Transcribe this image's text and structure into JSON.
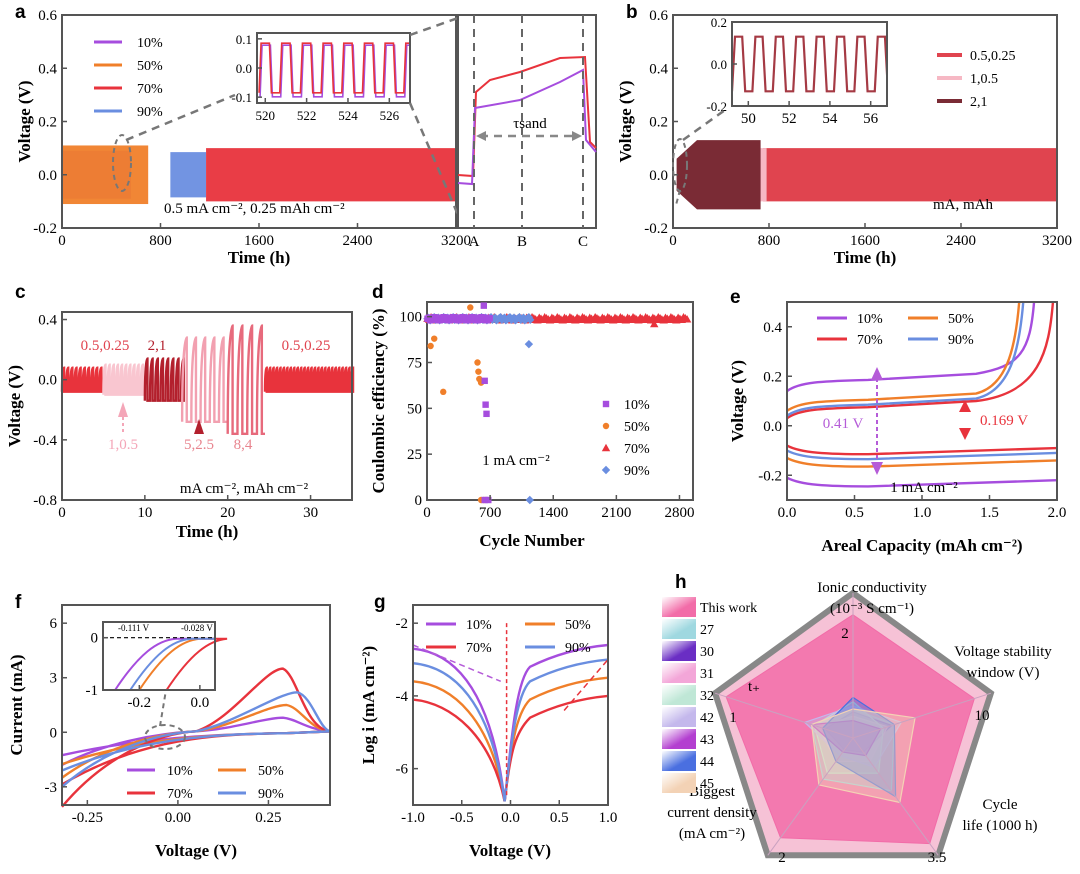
{
  "panels": [
    {
      "id": "a",
      "label": "a"
    },
    {
      "id": "b",
      "label": "b"
    },
    {
      "id": "c",
      "label": "c"
    },
    {
      "id": "d",
      "label": "d"
    },
    {
      "id": "e",
      "label": "e"
    },
    {
      "id": "f",
      "label": "f"
    },
    {
      "id": "g",
      "label": "g"
    },
    {
      "id": "h",
      "label": "h"
    }
  ],
  "chart_data": [
    {
      "id": "a",
      "type": "line",
      "xlabel": "Time (h)",
      "ylabel": "Voltage (V)",
      "xlim": [
        0,
        3200
      ],
      "ylim": [
        -0.2,
        0.6
      ],
      "xticks": [
        0,
        800,
        1600,
        2400,
        3200
      ],
      "yticks": [
        -0.2,
        0.0,
        0.2,
        0.4,
        0.6
      ],
      "series": [
        {
          "name": "10%",
          "color": "#a64dde",
          "x_range": [
            0,
            560
          ],
          "amplitude": 0.09
        },
        {
          "name": "50%",
          "color": "#f07f2a",
          "x_range": [
            0,
            700
          ],
          "amplitude": 0.11
        },
        {
          "name": "90%",
          "color": "#6a8ee0",
          "x_range": [
            880,
            1170
          ],
          "amplitude": 0.085
        },
        {
          "name": "70%",
          "color": "#e8333c",
          "x_range": [
            1170,
            3200
          ],
          "amplitude": 0.1
        }
      ],
      "annotation": "0.5 mA cm⁻², 0.25 mAh cm⁻²",
      "inset": {
        "xlim": [
          519.6,
          527.0
        ],
        "ylim": [
          -0.12,
          0.12
        ],
        "xticks": [
          520,
          522,
          524,
          526
        ],
        "yticks": [
          0.1,
          0.0,
          -0.1
        ]
      },
      "zoom": {
        "markers": [
          "A",
          "B",
          "C"
        ],
        "label": "τsand"
      }
    },
    {
      "id": "b",
      "type": "line",
      "xlabel": "Time (h)",
      "ylabel": "Voltage (V)",
      "xlim": [
        0,
        3200
      ],
      "ylim": [
        -0.2,
        0.6
      ],
      "xticks": [
        0,
        800,
        1600,
        2400,
        3200
      ],
      "yticks": [
        -0.2,
        0.0,
        0.2,
        0.4,
        0.6
      ],
      "series": [
        {
          "name": "0.5,0.25",
          "color": "#e0444f",
          "x_range": [
            750,
            3200
          ],
          "amplitude": 0.1
        },
        {
          "name": "1,0.5",
          "color": "#f6b8c4",
          "x_range": [
            700,
            780
          ],
          "amplitude": 0.1
        },
        {
          "name": "2,1",
          "color": "#7a2b35",
          "x_range": [
            30,
            730
          ],
          "amplitude": 0.13
        }
      ],
      "annotation": "mA, mAh",
      "inset": {
        "xlim": [
          49.2,
          56.8
        ],
        "ylim": [
          -0.2,
          0.2
        ],
        "xticks": [
          50,
          52,
          54,
          56
        ],
        "yticks": [
          0.2,
          0.0,
          -0.2
        ]
      }
    },
    {
      "id": "c",
      "type": "line",
      "xlabel": "Time (h)",
      "ylabel": "Voltage (V)",
      "xlim": [
        0,
        35
      ],
      "ylim": [
        -0.8,
        0.45
      ],
      "xticks": [
        0,
        10,
        20,
        30
      ],
      "yticks": [
        -0.8,
        -0.4,
        0.0,
        0.4
      ],
      "segments": [
        {
          "label": "0.5,0.25",
          "t": [
            0,
            5
          ],
          "amp": 0.08,
          "color": "#e8333c"
        },
        {
          "label": "1,0.5",
          "t": [
            5,
            10
          ],
          "amp": 0.1,
          "color": "#f9c6d0"
        },
        {
          "label": "2,1",
          "t": [
            10,
            14.5
          ],
          "amp": 0.14,
          "color": "#b3202d"
        },
        {
          "label": "5,2.5",
          "t": [
            14.5,
            20
          ],
          "amp": 0.28,
          "color": "#f2a0b0"
        },
        {
          "label": "8,4",
          "t": [
            20,
            24.5
          ],
          "amp": 0.36,
          "color": "#e76a7c"
        },
        {
          "label": "0.5,0.25",
          "t": [
            24.5,
            35
          ],
          "amp": 0.08,
          "color": "#e8333c"
        }
      ],
      "annotation": "mA cm⁻², mAh cm⁻²",
      "arrow_labels": [
        "1,0.5",
        "5,2.5",
        "8,4"
      ],
      "top_labels": [
        "0.5,0.25",
        "2,1",
        "0.5,0.25"
      ]
    },
    {
      "id": "d",
      "type": "scatter",
      "xlabel": "Cycle Number",
      "ylabel": "Coulombic efficiency (%)",
      "xlim": [
        0,
        2950
      ],
      "ylim": [
        0,
        108
      ],
      "xticks": [
        0,
        700,
        1400,
        2100,
        2800
      ],
      "yticks": [
        0,
        25,
        50,
        75,
        100
      ],
      "series": [
        {
          "name": "10%",
          "color": "#a64dde",
          "marker": "square",
          "x_range": [
            0,
            700
          ],
          "outliers": [
            [
              640,
              65
            ],
            [
              650,
              52
            ],
            [
              660,
              47
            ],
            [
              630,
              106
            ],
            [
              640,
              0
            ],
            [
              680,
              0
            ]
          ]
        },
        {
          "name": "50%",
          "color": "#f07f2a",
          "marker": "circle",
          "x_range": [
            0,
            600
          ],
          "outliers": [
            [
              40,
              84
            ],
            [
              80,
              88
            ],
            [
              180,
              59
            ],
            [
              480,
              105
            ],
            [
              560,
              75
            ],
            [
              570,
              70
            ],
            [
              580,
              66
            ],
            [
              600,
              64
            ],
            [
              600,
              0
            ],
            [
              630,
              0
            ]
          ]
        },
        {
          "name": "70%",
          "color": "#e8333c",
          "marker": "triangle",
          "x_range": [
            0,
            2900
          ],
          "outliers": [
            [
              2520,
              96
            ]
          ]
        },
        {
          "name": "90%",
          "color": "#6a8ee0",
          "marker": "diamond",
          "x_range": [
            0,
            1150
          ],
          "outliers": [
            [
              1130,
              85
            ],
            [
              1140,
              0
            ]
          ]
        }
      ],
      "annotation": "1 mA cm⁻²"
    },
    {
      "id": "e",
      "type": "line",
      "xlabel": "Areal Capacity (mAh cm⁻²)",
      "ylabel": "Voltage (V)",
      "xlim": [
        0,
        2.0
      ],
      "ylim": [
        -0.3,
        0.5
      ],
      "xticks": [
        0.0,
        0.5,
        1.0,
        1.5,
        2.0
      ],
      "yticks": [
        -0.2,
        0.0,
        0.2,
        0.4
      ],
      "series": [
        {
          "name": "10%",
          "color": "#a64dde",
          "charge": 0.17,
          "discharge": -0.24
        },
        {
          "name": "50%",
          "color": "#f07f2a",
          "charge": 0.09,
          "discharge": -0.16
        },
        {
          "name": "70%",
          "color": "#e8333c",
          "charge": 0.06,
          "discharge": -0.11
        },
        {
          "name": "90%",
          "color": "#6a8ee0",
          "charge": 0.07,
          "discharge": -0.13
        }
      ],
      "annotations": [
        "0.41 V",
        "0.169 V",
        "1 mA cm⁻²"
      ]
    },
    {
      "id": "f",
      "type": "line",
      "xlabel": "Voltage (V)",
      "ylabel": "Current (mA)",
      "xlim": [
        -0.32,
        0.42
      ],
      "ylim": [
        -4,
        7
      ],
      "xticks": [
        -0.25,
        0.0,
        0.25
      ],
      "yticks": [
        -3,
        0,
        3,
        6
      ],
      "series": [
        {
          "name": "10%",
          "color": "#a64dde",
          "peak_x": 0.29,
          "peak_y": 0.8
        },
        {
          "name": "50%",
          "color": "#f07f2a",
          "peak_x": 0.3,
          "peak_y": 1.5
        },
        {
          "name": "70%",
          "color": "#e8333c",
          "peak_x": 0.29,
          "peak_y": 3.5
        },
        {
          "name": "90%",
          "color": "#6a8ee0",
          "peak_x": 0.33,
          "peak_y": 2.2
        }
      ],
      "inset": {
        "xlim": [
          -0.32,
          0.05
        ],
        "ylim": [
          -1,
          0.3
        ],
        "xticks": [
          -0.2,
          0.0
        ],
        "yticks": [
          0,
          -1
        ],
        "labels": [
          "-0.111 V",
          "-0.028 V"
        ]
      }
    },
    {
      "id": "g",
      "type": "line",
      "xlabel": "Voltage (V)",
      "ylabel": "Log i (mA cm⁻²)",
      "xlim": [
        -1.0,
        1.0
      ],
      "ylim": [
        -7,
        -1.5
      ],
      "xticks": [
        -1.0,
        -0.5,
        0.0,
        0.5,
        1.0
      ],
      "yticks": [
        -6,
        -4,
        -2
      ],
      "series": [
        {
          "name": "10%",
          "color": "#a64dde",
          "base": -2.7
        },
        {
          "name": "50%",
          "color": "#f07f2a",
          "base": -3.6
        },
        {
          "name": "70%",
          "color": "#e8333c",
          "base": -4.1
        },
        {
          "name": "90%",
          "color": "#6a8ee0",
          "base": -3.1
        }
      ]
    },
    {
      "id": "h",
      "type": "radar",
      "axes": [
        {
          "name": "Ionic conductivity",
          "unit": "(10⁻³ S cm⁻¹)",
          "max": 2
        },
        {
          "name": "Voltage stability",
          "unit": "window (V)",
          "max": 10
        },
        {
          "name": "Cycle",
          "unit": "life (1000 h)",
          "max": 3.5
        },
        {
          "name": "Biggest",
          "unit": "current density",
          "unit2": "(mA cm⁻²)",
          "max": 2
        },
        {
          "name": "t₊",
          "unit": "",
          "max": 1
        }
      ],
      "axis_max_labels": [
        "2",
        "10",
        "3.5",
        "2",
        "1"
      ],
      "series": [
        {
          "name": "This work",
          "color": "#f26ca8",
          "values": [
            0.85,
            0.88,
            0.9,
            0.85,
            0.92
          ]
        },
        {
          "name": "27",
          "color": "#9fd8e0",
          "values": [
            0.2,
            0.3,
            0.45,
            0.35,
            0.3
          ]
        },
        {
          "name": "30",
          "color": "#6a2ec4",
          "values": [
            0.18,
            0.28,
            0.12,
            0.1,
            0.2
          ]
        },
        {
          "name": "31",
          "color": "#f3a6d8",
          "values": [
            0.15,
            0.25,
            0.2,
            0.2,
            0.25
          ]
        },
        {
          "name": "32",
          "color": "#bfe7d6",
          "values": [
            0.25,
            0.22,
            0.3,
            0.3,
            0.28
          ]
        },
        {
          "name": "42",
          "color": "#c4b8ec",
          "values": [
            0.22,
            0.35,
            0.25,
            0.15,
            0.35
          ]
        },
        {
          "name": "43",
          "color": "#b33fd0",
          "values": [
            0.12,
            0.2,
            0.15,
            0.12,
            0.3
          ]
        },
        {
          "name": "44",
          "color": "#4a6fe0",
          "values": [
            0.28,
            0.3,
            0.5,
            0.2,
            0.22
          ]
        },
        {
          "name": "45",
          "color": "#f3d2b5",
          "values": [
            0.2,
            0.45,
            0.55,
            0.4,
            0.3
          ]
        }
      ]
    }
  ]
}
